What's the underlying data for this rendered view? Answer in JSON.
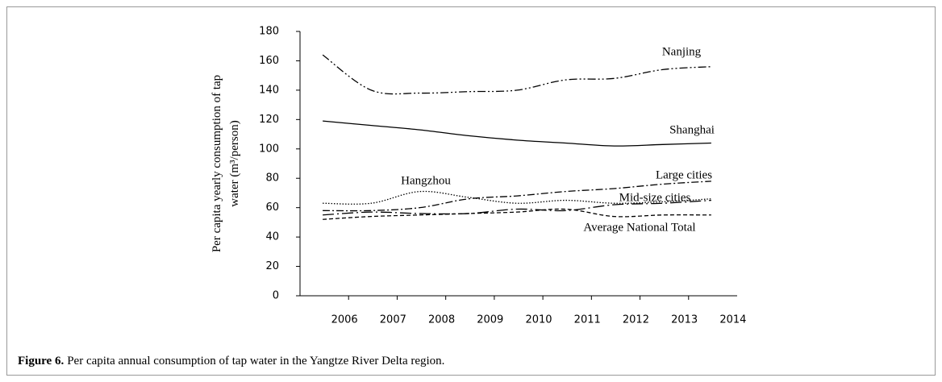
{
  "chart_data": {
    "type": "line",
    "y_label": [
      "Per capita yearly consumption of tap",
      "water (m³/person)"
    ],
    "caption_label": "Figure 6.",
    "caption_text": "Per capita annual consumption of tap water in the Yangtze River Delta region.",
    "categories": [
      "2006",
      "2007",
      "2008",
      "2009",
      "2010",
      "2011",
      "2012",
      "2013",
      "2014"
    ],
    "ylim": [
      0,
      180
    ],
    "yticks": [
      0,
      20,
      40,
      60,
      80,
      100,
      120,
      140,
      160,
      180
    ],
    "series": [
      {
        "name": "Nanjing",
        "color": "#000000",
        "style": "dash-dot-dot",
        "values": [
          164,
          140,
          138,
          139,
          140,
          147,
          148,
          154,
          156
        ]
      },
      {
        "name": "Shanghai",
        "color": "#000000",
        "style": "solid",
        "values": [
          119,
          116,
          113,
          109,
          106,
          104,
          102,
          103,
          104
        ]
      },
      {
        "name": "Large cities",
        "color": "#000000",
        "style": "dash-dot",
        "values": [
          58,
          58,
          60,
          66,
          68,
          71,
          73,
          76,
          78
        ]
      },
      {
        "name": "Mid-size cities",
        "color": "#000000",
        "style": "long-dash-dot",
        "values": [
          55,
          57,
          56,
          56,
          59,
          58,
          62,
          63,
          65
        ]
      },
      {
        "name": "Hangzhou",
        "color": "#000000",
        "style": "dotted",
        "values": [
          63,
          63,
          71,
          67,
          63,
          65,
          63,
          64,
          66
        ]
      },
      {
        "name": "Average National Total",
        "color": "#000000",
        "style": "dashed",
        "values": [
          52,
          54,
          55,
          56,
          57,
          59,
          54,
          55,
          55
        ]
      }
    ]
  }
}
